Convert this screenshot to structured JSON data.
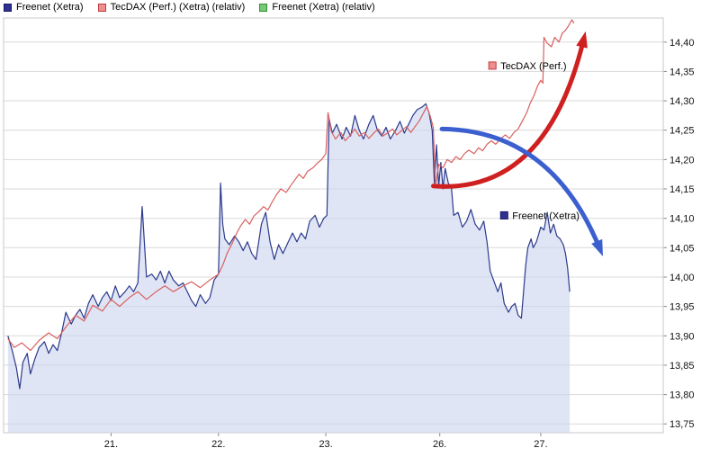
{
  "legend": {
    "items": [
      {
        "label": "Freenet (Xetra)",
        "color": "#2e3192",
        "border": "#141466"
      },
      {
        "label": "TecDAX (Perf.) (Xetra) (relativ)",
        "color": "#ee8f8f",
        "border": "#c03a3a"
      },
      {
        "label": "Freenet (Xetra) (relativ)",
        "color": "#77c877",
        "border": "#2f8f2f"
      }
    ]
  },
  "chart_data": {
    "type": "line",
    "title": "",
    "xlabel": "",
    "ylabel": "",
    "legend_position": "top-left",
    "xlim": [
      0,
      6.14
    ],
    "ylim": [
      13.735,
      14.441
    ],
    "grid": {
      "horizontal": true,
      "vertical": false,
      "color": "#d9d9d9"
    },
    "x_ticks": [
      {
        "label": "21.",
        "t": 1.0
      },
      {
        "label": "22.",
        "t": 2.0
      },
      {
        "label": "23.",
        "t": 3.0
      },
      {
        "label": "26.",
        "t": 4.06
      },
      {
        "label": "27.",
        "t": 5.0
      }
    ],
    "y_ticks": [
      {
        "label": "14,40",
        "value": 14.4
      },
      {
        "label": "14,35",
        "value": 14.35
      },
      {
        "label": "14,30",
        "value": 14.3
      },
      {
        "label": "14,25",
        "value": 14.25
      },
      {
        "label": "14,20",
        "value": 14.2
      },
      {
        "label": "14,15",
        "value": 14.15
      },
      {
        "label": "14,10",
        "value": 14.1
      },
      {
        "label": "14,05",
        "value": 14.05
      },
      {
        "label": "14,00",
        "value": 14.0
      },
      {
        "label": "13,95",
        "value": 13.95
      },
      {
        "label": "13,90",
        "value": 13.9
      },
      {
        "label": "13,85",
        "value": 13.85
      },
      {
        "label": "13,80",
        "value": 13.8
      },
      {
        "label": "13,75",
        "value": 13.75
      }
    ],
    "series": [
      {
        "id": "freenet",
        "name": "Freenet (Xetra)",
        "color": "#2c3a8c",
        "area": true,
        "fill": "#c9d4ee",
        "fill_opacity": 0.6,
        "points": [
          [
            0.04,
            13.9
          ],
          [
            0.08,
            13.875
          ],
          [
            0.12,
            13.845
          ],
          [
            0.15,
            13.81
          ],
          [
            0.18,
            13.855
          ],
          [
            0.22,
            13.87
          ],
          [
            0.25,
            13.835
          ],
          [
            0.29,
            13.86
          ],
          [
            0.33,
            13.88
          ],
          [
            0.38,
            13.89
          ],
          [
            0.42,
            13.87
          ],
          [
            0.46,
            13.885
          ],
          [
            0.5,
            13.875
          ],
          [
            0.54,
            13.905
          ],
          [
            0.58,
            13.94
          ],
          [
            0.63,
            13.92
          ],
          [
            0.67,
            13.935
          ],
          [
            0.71,
            13.945
          ],
          [
            0.75,
            13.93
          ],
          [
            0.79,
            13.955
          ],
          [
            0.83,
            13.97
          ],
          [
            0.88,
            13.95
          ],
          [
            0.92,
            13.965
          ],
          [
            0.96,
            13.975
          ],
          [
            1.0,
            13.96
          ],
          [
            1.04,
            13.985
          ],
          [
            1.08,
            13.965
          ],
          [
            1.13,
            13.975
          ],
          [
            1.17,
            13.985
          ],
          [
            1.21,
            13.975
          ],
          [
            1.25,
            13.99
          ],
          [
            1.29,
            14.12
          ],
          [
            1.31,
            14.06
          ],
          [
            1.33,
            14.0
          ],
          [
            1.38,
            14.005
          ],
          [
            1.42,
            13.995
          ],
          [
            1.46,
            14.01
          ],
          [
            1.5,
            13.99
          ],
          [
            1.54,
            14.01
          ],
          [
            1.58,
            13.995
          ],
          [
            1.63,
            13.985
          ],
          [
            1.67,
            13.99
          ],
          [
            1.71,
            13.975
          ],
          [
            1.75,
            13.96
          ],
          [
            1.79,
            13.95
          ],
          [
            1.83,
            13.97
          ],
          [
            1.88,
            13.955
          ],
          [
            1.92,
            13.965
          ],
          [
            1.96,
            13.995
          ],
          [
            2.0,
            14.005
          ],
          [
            2.02,
            14.16
          ],
          [
            2.04,
            14.09
          ],
          [
            2.06,
            14.065
          ],
          [
            2.1,
            14.055
          ],
          [
            2.15,
            14.07
          ],
          [
            2.19,
            14.06
          ],
          [
            2.23,
            14.045
          ],
          [
            2.27,
            14.06
          ],
          [
            2.31,
            14.04
          ],
          [
            2.35,
            14.03
          ],
          [
            2.4,
            14.09
          ],
          [
            2.44,
            14.11
          ],
          [
            2.48,
            14.06
          ],
          [
            2.52,
            14.03
          ],
          [
            2.56,
            14.055
          ],
          [
            2.6,
            14.04
          ],
          [
            2.65,
            14.06
          ],
          [
            2.69,
            14.075
          ],
          [
            2.73,
            14.06
          ],
          [
            2.77,
            14.075
          ],
          [
            2.81,
            14.065
          ],
          [
            2.85,
            14.095
          ],
          [
            2.9,
            14.105
          ],
          [
            2.94,
            14.085
          ],
          [
            2.98,
            14.1
          ],
          [
            3.01,
            14.105
          ],
          [
            3.03,
            14.27
          ],
          [
            3.06,
            14.245
          ],
          [
            3.1,
            14.26
          ],
          [
            3.15,
            14.235
          ],
          [
            3.19,
            14.255
          ],
          [
            3.23,
            14.24
          ],
          [
            3.27,
            14.275
          ],
          [
            3.31,
            14.25
          ],
          [
            3.35,
            14.235
          ],
          [
            3.4,
            14.26
          ],
          [
            3.44,
            14.275
          ],
          [
            3.48,
            14.25
          ],
          [
            3.52,
            14.24
          ],
          [
            3.56,
            14.255
          ],
          [
            3.6,
            14.235
          ],
          [
            3.65,
            14.25
          ],
          [
            3.69,
            14.265
          ],
          [
            3.73,
            14.245
          ],
          [
            3.77,
            14.26
          ],
          [
            3.81,
            14.275
          ],
          [
            3.85,
            14.285
          ],
          [
            3.9,
            14.29
          ],
          [
            3.93,
            14.295
          ],
          [
            3.96,
            14.28
          ],
          [
            3.99,
            14.25
          ],
          [
            4.01,
            14.16
          ],
          [
            4.03,
            14.225
          ],
          [
            4.05,
            14.155
          ],
          [
            4.07,
            14.195
          ],
          [
            4.09,
            14.15
          ],
          [
            4.11,
            14.185
          ],
          [
            4.14,
            14.16
          ],
          [
            4.17,
            14.15
          ],
          [
            4.19,
            14.105
          ],
          [
            4.23,
            14.11
          ],
          [
            4.27,
            14.085
          ],
          [
            4.31,
            14.095
          ],
          [
            4.35,
            14.115
          ],
          [
            4.39,
            14.09
          ],
          [
            4.43,
            14.08
          ],
          [
            4.47,
            14.095
          ],
          [
            4.5,
            14.06
          ],
          [
            4.53,
            14.01
          ],
          [
            4.56,
            13.995
          ],
          [
            4.6,
            13.975
          ],
          [
            4.63,
            13.99
          ],
          [
            4.66,
            13.955
          ],
          [
            4.7,
            13.94
          ],
          [
            4.73,
            13.95
          ],
          [
            4.76,
            13.955
          ],
          [
            4.79,
            13.935
          ],
          [
            4.82,
            13.93
          ],
          [
            4.84,
            13.975
          ],
          [
            4.86,
            14.02
          ],
          [
            4.88,
            14.05
          ],
          [
            4.91,
            14.065
          ],
          [
            4.93,
            14.05
          ],
          [
            4.96,
            14.06
          ],
          [
            5.0,
            14.085
          ],
          [
            5.03,
            14.08
          ],
          [
            5.06,
            14.11
          ],
          [
            5.09,
            14.075
          ],
          [
            5.12,
            14.09
          ],
          [
            5.15,
            14.07
          ],
          [
            5.18,
            14.065
          ],
          [
            5.21,
            14.055
          ],
          [
            5.23,
            14.04
          ],
          [
            5.25,
            14.015
          ],
          [
            5.27,
            13.975
          ]
        ]
      },
      {
        "id": "tecdax",
        "name": "TecDAX (Perf.) (Xetra) (relativ)",
        "color": "#d96060",
        "area": false,
        "points": [
          [
            0.04,
            13.895
          ],
          [
            0.1,
            13.88
          ],
          [
            0.17,
            13.888
          ],
          [
            0.25,
            13.875
          ],
          [
            0.33,
            13.892
          ],
          [
            0.42,
            13.905
          ],
          [
            0.5,
            13.895
          ],
          [
            0.58,
            13.915
          ],
          [
            0.67,
            13.935
          ],
          [
            0.75,
            13.925
          ],
          [
            0.83,
            13.952
          ],
          [
            0.92,
            13.942
          ],
          [
            1.0,
            13.962
          ],
          [
            1.08,
            13.95
          ],
          [
            1.17,
            13.965
          ],
          [
            1.25,
            13.975
          ],
          [
            1.33,
            13.962
          ],
          [
            1.42,
            13.975
          ],
          [
            1.5,
            13.985
          ],
          [
            1.58,
            13.975
          ],
          [
            1.67,
            13.985
          ],
          [
            1.75,
            13.992
          ],
          [
            1.83,
            13.982
          ],
          [
            1.92,
            13.995
          ],
          [
            2.0,
            14.005
          ],
          [
            2.04,
            14.02
          ],
          [
            2.08,
            14.04
          ],
          [
            2.13,
            14.058
          ],
          [
            2.17,
            14.075
          ],
          [
            2.21,
            14.088
          ],
          [
            2.25,
            14.098
          ],
          [
            2.29,
            14.09
          ],
          [
            2.33,
            14.104
          ],
          [
            2.38,
            14.112
          ],
          [
            2.42,
            14.12
          ],
          [
            2.46,
            14.114
          ],
          [
            2.5,
            14.128
          ],
          [
            2.54,
            14.14
          ],
          [
            2.58,
            14.15
          ],
          [
            2.63,
            14.144
          ],
          [
            2.67,
            14.155
          ],
          [
            2.71,
            14.165
          ],
          [
            2.75,
            14.175
          ],
          [
            2.79,
            14.168
          ],
          [
            2.83,
            14.18
          ],
          [
            2.88,
            14.186
          ],
          [
            2.92,
            14.194
          ],
          [
            2.96,
            14.2
          ],
          [
            3.0,
            14.21
          ],
          [
            3.02,
            14.28
          ],
          [
            3.05,
            14.248
          ],
          [
            3.09,
            14.235
          ],
          [
            3.14,
            14.246
          ],
          [
            3.18,
            14.232
          ],
          [
            3.23,
            14.242
          ],
          [
            3.27,
            14.252
          ],
          [
            3.31,
            14.24
          ],
          [
            3.36,
            14.246
          ],
          [
            3.4,
            14.236
          ],
          [
            3.45,
            14.246
          ],
          [
            3.49,
            14.252
          ],
          [
            3.53,
            14.24
          ],
          [
            3.58,
            14.246
          ],
          [
            3.62,
            14.252
          ],
          [
            3.66,
            14.242
          ],
          [
            3.71,
            14.25
          ],
          [
            3.75,
            14.256
          ],
          [
            3.79,
            14.246
          ],
          [
            3.83,
            14.256
          ],
          [
            3.87,
            14.266
          ],
          [
            3.91,
            14.28
          ],
          [
            3.94,
            14.29
          ],
          [
            3.97,
            14.275
          ],
          [
            4.0,
            14.255
          ],
          [
            4.02,
            14.155
          ],
          [
            4.05,
            14.192
          ],
          [
            4.09,
            14.186
          ],
          [
            4.13,
            14.2
          ],
          [
            4.17,
            14.195
          ],
          [
            4.21,
            14.205
          ],
          [
            4.25,
            14.2
          ],
          [
            4.29,
            14.21
          ],
          [
            4.33,
            14.216
          ],
          [
            4.38,
            14.21
          ],
          [
            4.42,
            14.22
          ],
          [
            4.46,
            14.215
          ],
          [
            4.5,
            14.226
          ],
          [
            4.54,
            14.232
          ],
          [
            4.58,
            14.226
          ],
          [
            4.63,
            14.236
          ],
          [
            4.67,
            14.242
          ],
          [
            4.71,
            14.236
          ],
          [
            4.75,
            14.246
          ],
          [
            4.79,
            14.252
          ],
          [
            4.83,
            14.266
          ],
          [
            4.87,
            14.28
          ],
          [
            4.9,
            14.295
          ],
          [
            4.94,
            14.31
          ],
          [
            4.97,
            14.325
          ],
          [
            5.0,
            14.335
          ],
          [
            5.02,
            14.33
          ],
          [
            5.03,
            14.408
          ],
          [
            5.06,
            14.398
          ],
          [
            5.1,
            14.392
          ],
          [
            5.13,
            14.408
          ],
          [
            5.17,
            14.4
          ],
          [
            5.2,
            14.415
          ],
          [
            5.23,
            14.42
          ],
          [
            5.26,
            14.428
          ],
          [
            5.29,
            14.438
          ],
          [
            5.31,
            14.432
          ]
        ]
      }
    ],
    "annotations": {
      "labels": [
        {
          "text": "TecDAX (Perf.)",
          "swatch_color": "#ee8f8f",
          "swatch_border": "#c03a3a",
          "t": 4.55,
          "price": 14.36
        },
        {
          "text": "Freenet (Xetra)",
          "swatch_color": "#2e3192",
          "swatch_border": "#141466",
          "t": 4.66,
          "price": 14.105
        }
      ],
      "arrows": [
        {
          "name": "tecdax-up-arrow",
          "color": "#cf2020",
          "start": [
            4.0,
            14.155
          ],
          "control": [
            5.05,
            14.14
          ],
          "end": [
            5.4,
            14.405
          ],
          "stroke_width": 5
        },
        {
          "name": "freenet-down-arrow",
          "color": "#3c5fd0",
          "start": [
            4.08,
            14.252
          ],
          "control": [
            5.1,
            14.25
          ],
          "end": [
            5.55,
            14.048
          ],
          "stroke_width": 5
        }
      ]
    }
  }
}
